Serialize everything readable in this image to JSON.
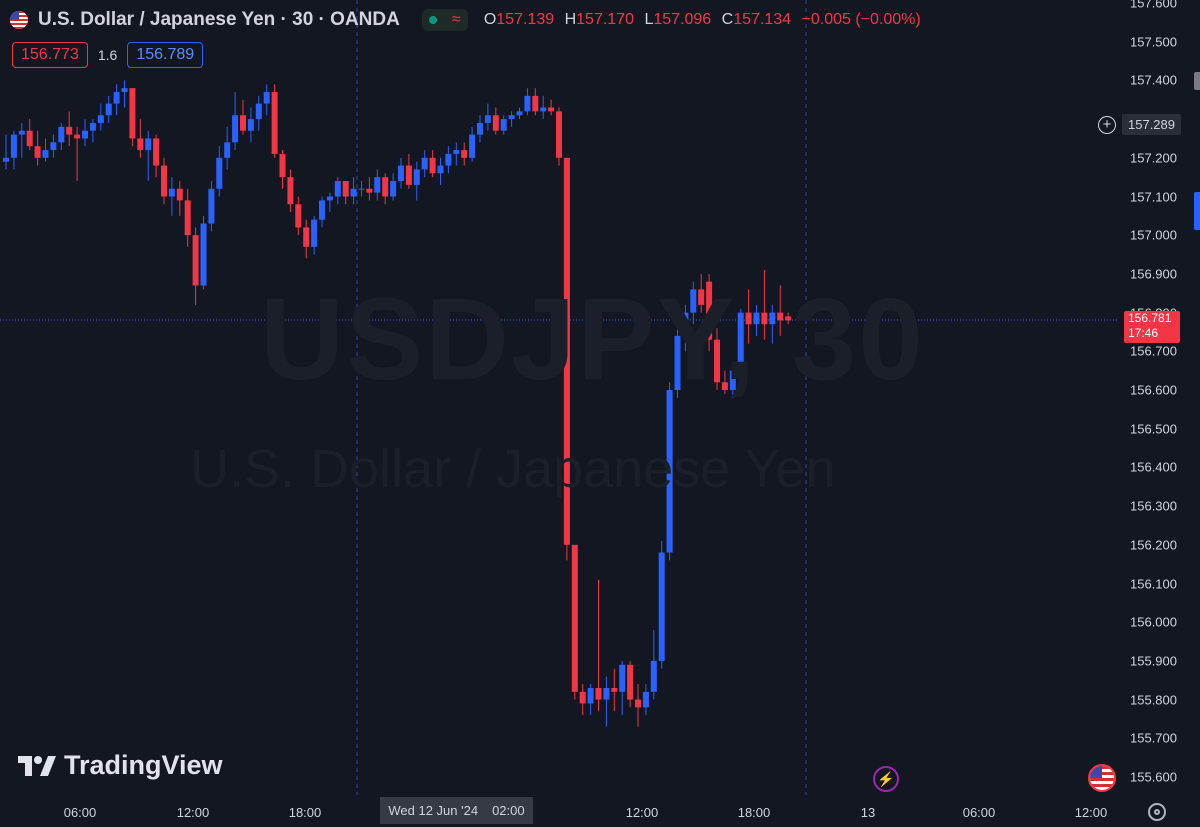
{
  "header": {
    "title": "U.S. Dollar / Japanese Yen · 30 · OANDA",
    "ohlc": {
      "o_label": "O",
      "o": "157.139",
      "h_label": "H",
      "h": "157.170",
      "l_label": "L",
      "l": "157.096",
      "c_label": "C",
      "c": "157.134",
      "change": "−0.005 (−0.00%)"
    },
    "sell_price": "156.773",
    "spread": "1.6",
    "buy_price": "156.789"
  },
  "watermark": {
    "symbol": "USDJPY, 30",
    "description": "U.S. Dollar / Japanese Yen"
  },
  "logo_text": "TradingView",
  "crosshair": {
    "date": "Wed 12 Jun '24",
    "time": "02:00"
  },
  "last_price": {
    "value": "156.781",
    "countdown": "17:46"
  },
  "alert_price": "157.289",
  "icons": {
    "symbol_flag": "us-flag-icon",
    "market_status": "market-open-dot-icon",
    "data_status": "wave-icon",
    "logo": "tradingview-logo-icon",
    "add_alert": "plus-circle-icon",
    "event": "lightning-icon",
    "economic_event": "us-flag-icon",
    "settings": "gear-icon"
  },
  "colors": {
    "background": "#131722",
    "up": "#2962ff",
    "down": "#f23645",
    "grid_session": "#2962ff",
    "text": "#d1d4dc"
  },
  "chart_data": {
    "type": "candlestick",
    "title": "U.S. Dollar / Japanese Yen · 30 · OANDA",
    "y_axis_ticks": [
      "157.600",
      "157.500",
      "157.400",
      "157.300",
      "157.200",
      "157.100",
      "157.000",
      "156.900",
      "156.800",
      "156.700",
      "156.600",
      "156.500",
      "156.400",
      "156.300",
      "156.200",
      "156.100",
      "156.000",
      "155.900",
      "155.800",
      "155.700",
      "155.600"
    ],
    "ylim": [
      155.56,
      157.6
    ],
    "x_axis_ticks": [
      "06:00",
      "12:00",
      "18:00",
      "12:00",
      "18:00",
      "13",
      "06:00",
      "12:00"
    ],
    "grid": false,
    "candles": [
      {
        "o": 157.19,
        "h": 157.26,
        "l": 157.17,
        "c": 157.2
      },
      {
        "o": 157.2,
        "h": 157.27,
        "l": 157.17,
        "c": 157.26
      },
      {
        "o": 157.26,
        "h": 157.29,
        "l": 157.2,
        "c": 157.27
      },
      {
        "o": 157.27,
        "h": 157.3,
        "l": 157.22,
        "c": 157.23
      },
      {
        "o": 157.23,
        "h": 157.27,
        "l": 157.18,
        "c": 157.2
      },
      {
        "o": 157.2,
        "h": 157.25,
        "l": 157.19,
        "c": 157.22
      },
      {
        "o": 157.22,
        "h": 157.26,
        "l": 157.2,
        "c": 157.24
      },
      {
        "o": 157.24,
        "h": 157.29,
        "l": 157.22,
        "c": 157.28
      },
      {
        "o": 157.28,
        "h": 157.32,
        "l": 157.23,
        "c": 157.26
      },
      {
        "o": 157.26,
        "h": 157.28,
        "l": 157.14,
        "c": 157.25
      },
      {
        "o": 157.25,
        "h": 157.3,
        "l": 157.23,
        "c": 157.27
      },
      {
        "o": 157.27,
        "h": 157.3,
        "l": 157.24,
        "c": 157.29
      },
      {
        "o": 157.29,
        "h": 157.34,
        "l": 157.27,
        "c": 157.31
      },
      {
        "o": 157.31,
        "h": 157.36,
        "l": 157.29,
        "c": 157.34
      },
      {
        "o": 157.34,
        "h": 157.39,
        "l": 157.31,
        "c": 157.37
      },
      {
        "o": 157.37,
        "h": 157.4,
        "l": 157.33,
        "c": 157.38
      },
      {
        "o": 157.38,
        "h": 157.38,
        "l": 157.23,
        "c": 157.25
      },
      {
        "o": 157.25,
        "h": 157.3,
        "l": 157.2,
        "c": 157.22
      },
      {
        "o": 157.22,
        "h": 157.27,
        "l": 157.14,
        "c": 157.25
      },
      {
        "o": 157.25,
        "h": 157.26,
        "l": 157.15,
        "c": 157.18
      },
      {
        "o": 157.18,
        "h": 157.2,
        "l": 157.08,
        "c": 157.1
      },
      {
        "o": 157.1,
        "h": 157.15,
        "l": 157.05,
        "c": 157.12
      },
      {
        "o": 157.12,
        "h": 157.14,
        "l": 157.05,
        "c": 157.09
      },
      {
        "o": 157.09,
        "h": 157.12,
        "l": 156.97,
        "c": 157.0
      },
      {
        "o": 157.0,
        "h": 157.02,
        "l": 156.82,
        "c": 156.87
      },
      {
        "o": 156.87,
        "h": 157.05,
        "l": 156.86,
        "c": 157.03
      },
      {
        "o": 157.03,
        "h": 157.14,
        "l": 157.01,
        "c": 157.12
      },
      {
        "o": 157.12,
        "h": 157.23,
        "l": 157.1,
        "c": 157.2
      },
      {
        "o": 157.2,
        "h": 157.28,
        "l": 157.17,
        "c": 157.24
      },
      {
        "o": 157.24,
        "h": 157.37,
        "l": 157.22,
        "c": 157.31
      },
      {
        "o": 157.31,
        "h": 157.35,
        "l": 157.26,
        "c": 157.27
      },
      {
        "o": 157.27,
        "h": 157.33,
        "l": 157.24,
        "c": 157.3
      },
      {
        "o": 157.3,
        "h": 157.36,
        "l": 157.27,
        "c": 157.34
      },
      {
        "o": 157.34,
        "h": 157.39,
        "l": 157.31,
        "c": 157.37
      },
      {
        "o": 157.37,
        "h": 157.39,
        "l": 157.2,
        "c": 157.21
      },
      {
        "o": 157.21,
        "h": 157.22,
        "l": 157.12,
        "c": 157.15
      },
      {
        "o": 157.15,
        "h": 157.17,
        "l": 157.06,
        "c": 157.08
      },
      {
        "o": 157.08,
        "h": 157.1,
        "l": 157.0,
        "c": 157.02
      },
      {
        "o": 157.02,
        "h": 157.04,
        "l": 156.94,
        "c": 156.97
      },
      {
        "o": 156.97,
        "h": 157.05,
        "l": 156.95,
        "c": 157.04
      },
      {
        "o": 157.04,
        "h": 157.1,
        "l": 157.02,
        "c": 157.09
      },
      {
        "o": 157.09,
        "h": 157.11,
        "l": 157.06,
        "c": 157.1
      },
      {
        "o": 157.1,
        "h": 157.15,
        "l": 157.08,
        "c": 157.14
      },
      {
        "o": 157.14,
        "h": 157.14,
        "l": 157.08,
        "c": 157.1
      },
      {
        "o": 157.1,
        "h": 157.15,
        "l": 157.08,
        "c": 157.12
      },
      {
        "o": 157.12,
        "h": 157.14,
        "l": 157.1,
        "c": 157.12
      },
      {
        "o": 157.12,
        "h": 157.15,
        "l": 157.09,
        "c": 157.11
      },
      {
        "o": 157.11,
        "h": 157.17,
        "l": 157.09,
        "c": 157.15
      },
      {
        "o": 157.15,
        "h": 157.16,
        "l": 157.08,
        "c": 157.1
      },
      {
        "o": 157.1,
        "h": 157.16,
        "l": 157.09,
        "c": 157.14
      },
      {
        "o": 157.14,
        "h": 157.2,
        "l": 157.12,
        "c": 157.18
      },
      {
        "o": 157.18,
        "h": 157.21,
        "l": 157.12,
        "c": 157.13
      },
      {
        "o": 157.13,
        "h": 157.19,
        "l": 157.09,
        "c": 157.17
      },
      {
        "o": 157.17,
        "h": 157.22,
        "l": 157.15,
        "c": 157.2
      },
      {
        "o": 157.2,
        "h": 157.22,
        "l": 157.15,
        "c": 157.16
      },
      {
        "o": 157.16,
        "h": 157.2,
        "l": 157.13,
        "c": 157.18
      },
      {
        "o": 157.18,
        "h": 157.23,
        "l": 157.16,
        "c": 157.21
      },
      {
        "o": 157.21,
        "h": 157.24,
        "l": 157.18,
        "c": 157.22
      },
      {
        "o": 157.22,
        "h": 157.24,
        "l": 157.18,
        "c": 157.2
      },
      {
        "o": 157.2,
        "h": 157.28,
        "l": 157.19,
        "c": 157.26
      },
      {
        "o": 157.26,
        "h": 157.31,
        "l": 157.24,
        "c": 157.29
      },
      {
        "o": 157.29,
        "h": 157.34,
        "l": 157.27,
        "c": 157.31
      },
      {
        "o": 157.31,
        "h": 157.33,
        "l": 157.26,
        "c": 157.27
      },
      {
        "o": 157.27,
        "h": 157.31,
        "l": 157.26,
        "c": 157.3
      },
      {
        "o": 157.3,
        "h": 157.32,
        "l": 157.28,
        "c": 157.31
      },
      {
        "o": 157.31,
        "h": 157.33,
        "l": 157.3,
        "c": 157.32
      },
      {
        "o": 157.32,
        "h": 157.38,
        "l": 157.31,
        "c": 157.36
      },
      {
        "o": 157.36,
        "h": 157.38,
        "l": 157.31,
        "c": 157.32
      },
      {
        "o": 157.32,
        "h": 157.36,
        "l": 157.3,
        "c": 157.33
      },
      {
        "o": 157.33,
        "h": 157.35,
        "l": 157.31,
        "c": 157.32
      },
      {
        "o": 157.32,
        "h": 157.33,
        "l": 157.18,
        "c": 157.2
      },
      {
        "o": 157.2,
        "h": 157.2,
        "l": 156.16,
        "c": 156.2
      },
      {
        "o": 156.2,
        "h": 156.2,
        "l": 155.8,
        "c": 155.82
      },
      {
        "o": 155.82,
        "h": 155.84,
        "l": 155.76,
        "c": 155.79
      },
      {
        "o": 155.79,
        "h": 155.84,
        "l": 155.76,
        "c": 155.83
      },
      {
        "o": 155.83,
        "h": 156.11,
        "l": 155.77,
        "c": 155.8
      },
      {
        "o": 155.8,
        "h": 155.86,
        "l": 155.73,
        "c": 155.83
      },
      {
        "o": 155.83,
        "h": 155.88,
        "l": 155.77,
        "c": 155.82
      },
      {
        "o": 155.82,
        "h": 155.9,
        "l": 155.76,
        "c": 155.89
      },
      {
        "o": 155.89,
        "h": 155.9,
        "l": 155.78,
        "c": 155.8
      },
      {
        "o": 155.8,
        "h": 155.84,
        "l": 155.73,
        "c": 155.78
      },
      {
        "o": 155.78,
        "h": 155.84,
        "l": 155.76,
        "c": 155.82
      },
      {
        "o": 155.82,
        "h": 155.98,
        "l": 155.8,
        "c": 155.9
      },
      {
        "o": 155.9,
        "h": 156.21,
        "l": 155.88,
        "c": 156.18
      },
      {
        "o": 156.18,
        "h": 156.62,
        "l": 156.16,
        "c": 156.6
      },
      {
        "o": 156.6,
        "h": 156.78,
        "l": 156.58,
        "c": 156.74
      },
      {
        "o": 156.74,
        "h": 156.82,
        "l": 156.7,
        "c": 156.8
      },
      {
        "o": 156.8,
        "h": 156.88,
        "l": 156.77,
        "c": 156.86
      },
      {
        "o": 156.86,
        "h": 156.9,
        "l": 156.8,
        "c": 156.82
      },
      {
        "o": 156.88,
        "h": 156.9,
        "l": 156.7,
        "c": 156.73
      },
      {
        "o": 156.73,
        "h": 156.76,
        "l": 156.6,
        "c": 156.62
      },
      {
        "o": 156.62,
        "h": 156.65,
        "l": 156.59,
        "c": 156.6
      },
      {
        "o": 156.6,
        "h": 156.67,
        "l": 156.58,
        "c": 156.65
      },
      {
        "o": 156.65,
        "h": 156.81,
        "l": 156.63,
        "c": 156.8
      },
      {
        "o": 156.8,
        "h": 156.86,
        "l": 156.72,
        "c": 156.77
      },
      {
        "o": 156.77,
        "h": 156.82,
        "l": 156.74,
        "c": 156.8
      },
      {
        "o": 156.8,
        "h": 156.91,
        "l": 156.73,
        "c": 156.77
      },
      {
        "o": 156.77,
        "h": 156.82,
        "l": 156.72,
        "c": 156.8
      },
      {
        "o": 156.8,
        "h": 156.87,
        "l": 156.74,
        "c": 156.78
      },
      {
        "o": 156.79,
        "h": 156.8,
        "l": 156.77,
        "c": 156.78
      }
    ]
  }
}
